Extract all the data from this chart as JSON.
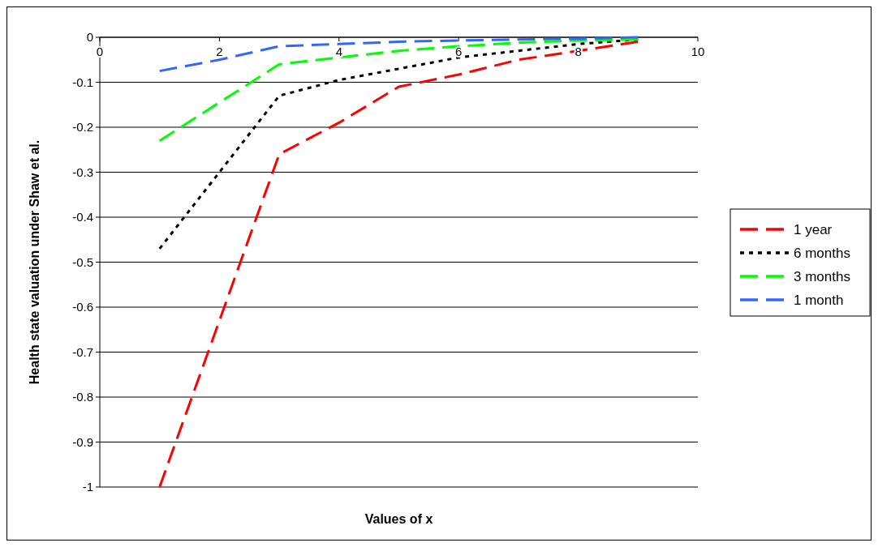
{
  "chart_data": {
    "type": "line",
    "xlabel": "Values of x",
    "ylabel": "Health state valuation under Shaw et al.",
    "x": [
      1,
      2,
      3,
      4,
      5,
      6,
      7,
      8,
      9
    ],
    "series": [
      {
        "name": "1 year",
        "color": "#ff0000",
        "line_style": "dashed",
        "values": [
          -1,
          -0.63,
          -0.26,
          -0.19,
          -0.11,
          -0.083,
          -0.05,
          -0.03,
          -0.01
        ]
      },
      {
        "name": "6 months",
        "color": "#000000",
        "line_style": "dotted",
        "values": [
          -0.47,
          -0.3,
          -0.13,
          -0.095,
          -0.07,
          -0.045,
          -0.03,
          -0.015,
          -0.005
        ]
      },
      {
        "name": "3 months",
        "color": "#00ff00",
        "line_style": "dashed",
        "values": [
          -0.23,
          -0.145,
          -0.06,
          -0.045,
          -0.03,
          -0.02,
          -0.012,
          -0.007,
          -0.005
        ]
      },
      {
        "name": "1 month",
        "color": "#3366ff",
        "line_style": "dashed",
        "values": [
          -0.075,
          -0.05,
          -0.02,
          -0.015,
          -0.01,
          -0.007,
          -0.005,
          -0.003,
          0
        ]
      }
    ],
    "xlim": [
      0,
      10
    ],
    "xticks": [
      0,
      2,
      4,
      6,
      8,
      10
    ],
    "ylim": [
      -1,
      0
    ],
    "yticks": [
      0,
      -0.1,
      -0.2,
      -0.3,
      -0.4,
      -0.5,
      -0.6,
      -0.7,
      -0.8,
      -0.9,
      -1
    ],
    "grid": "y",
    "legend": "right",
    "marker": "none"
  }
}
